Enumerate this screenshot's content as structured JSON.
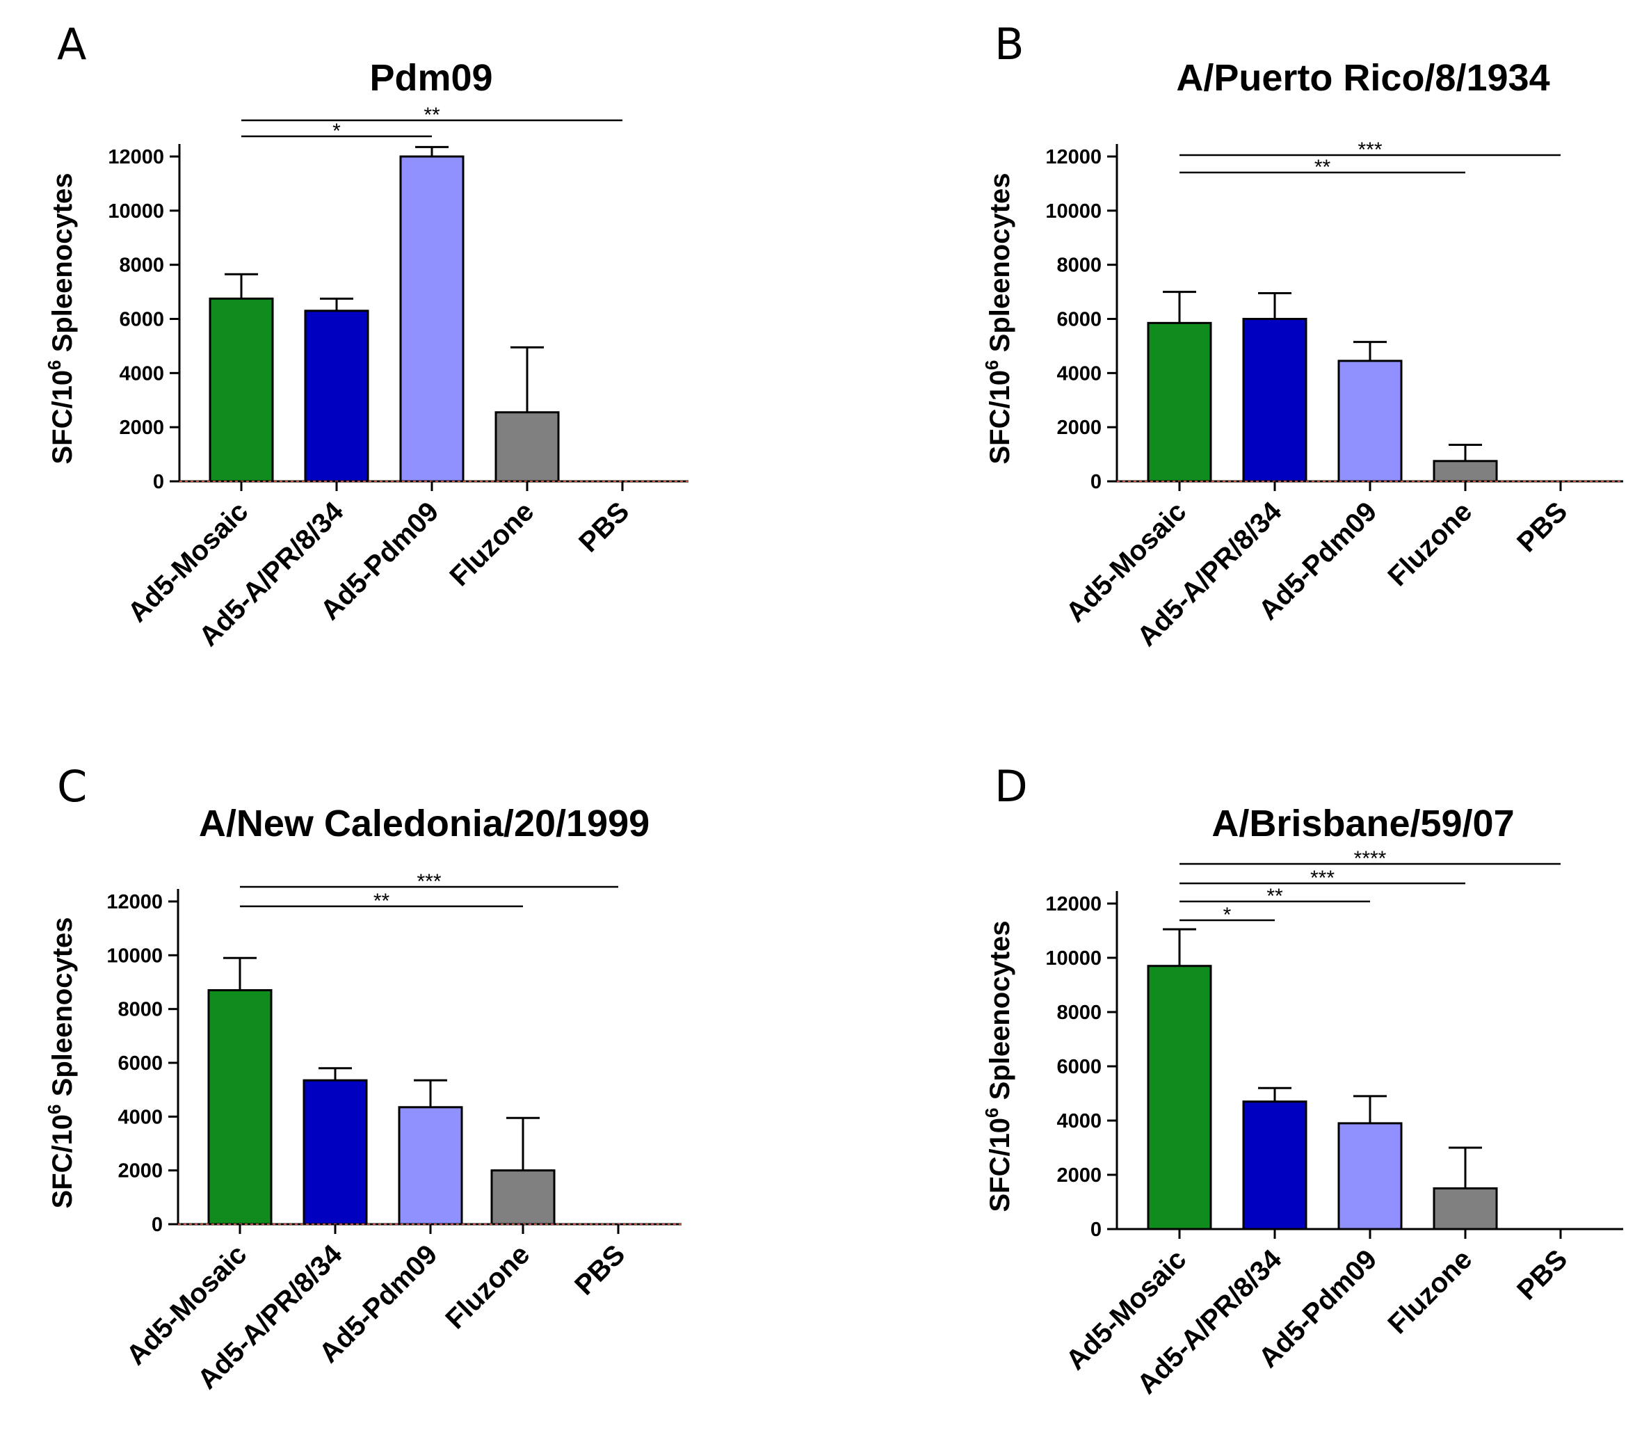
{
  "figure_type": "bar",
  "colors": {
    "Ad5-Mosaic": "#108c1e",
    "Ad5-A/PR/8/34": "#0000c0",
    "Ad5-Pdm09": "#9090ff",
    "Fluzone": "#808080",
    "PBS": "#ffffff",
    "axis": "#000000",
    "baseline_dotted": "#c05040"
  },
  "chart_data": [
    {
      "panel": "A",
      "type": "bar",
      "title": "Pdm09",
      "ylabel": {
        "main": "SFC/10",
        "sup": "6",
        "rest": " Spleenocytes"
      },
      "xlabel": "",
      "ylim": [
        0,
        12000
      ],
      "yticks": [
        "0",
        "2000",
        "4000",
        "6000",
        "8000",
        "10000",
        "12000"
      ],
      "categories": [
        "Ad5-Mosaic",
        "Ad5-A/PR/8/34",
        "Ad5-Pdm09",
        "Fluzone",
        "PBS"
      ],
      "values": [
        6750,
        6300,
        12000,
        2550,
        0
      ],
      "errors": [
        900,
        450,
        350,
        2400,
        0
      ],
      "significance": [
        {
          "from": "Ad5-Mosaic",
          "to": "Ad5-Pdm09",
          "label": "*"
        },
        {
          "from": "Ad5-Mosaic",
          "to": "PBS",
          "label": "**"
        }
      ]
    },
    {
      "panel": "B",
      "type": "bar",
      "title": "A/Puerto Rico/8/1934",
      "ylabel": {
        "main": "SFC/10",
        "sup": "6",
        "rest": " Spleenocytes"
      },
      "xlabel": "",
      "ylim": [
        0,
        12000
      ],
      "yticks": [
        "0",
        "2000",
        "4000",
        "6000",
        "8000",
        "10000",
        "12000"
      ],
      "categories": [
        "Ad5-Mosaic",
        "Ad5-A/PR/8/34",
        "Ad5-Pdm09",
        "Fluzone",
        "PBS"
      ],
      "values": [
        5850,
        6000,
        4450,
        750,
        0
      ],
      "errors": [
        1150,
        950,
        700,
        600,
        0
      ],
      "significance": [
        {
          "from": "Ad5-Mosaic",
          "to": "Fluzone",
          "label": "**"
        },
        {
          "from": "Ad5-Mosaic",
          "to": "PBS",
          "label": "***"
        }
      ]
    },
    {
      "panel": "C",
      "type": "bar",
      "title": "A/New Caledonia/20/1999",
      "ylabel": {
        "main": "SFC/10",
        "sup": "6",
        "rest": " Spleenocytes"
      },
      "xlabel": "",
      "ylim": [
        0,
        12000
      ],
      "yticks": [
        "0",
        "2000",
        "4000",
        "6000",
        "8000",
        "10000",
        "12000"
      ],
      "categories": [
        "Ad5-Mosaic",
        "Ad5-A/PR/8/34",
        "Ad5-Pdm09",
        "Fluzone",
        "PBS"
      ],
      "values": [
        8700,
        5350,
        4350,
        2000,
        0
      ],
      "errors": [
        1200,
        450,
        1000,
        1950,
        0
      ],
      "significance": [
        {
          "from": "Ad5-Mosaic",
          "to": "Fluzone",
          "label": "**"
        },
        {
          "from": "Ad5-Mosaic",
          "to": "PBS",
          "label": "***"
        }
      ]
    },
    {
      "panel": "D",
      "type": "bar",
      "title": "A/Brisbane/59/07",
      "ylabel": {
        "main": "SFC/10",
        "sup": "6",
        "rest": " Spleenocytes"
      },
      "xlabel": "",
      "ylim": [
        0,
        12000
      ],
      "yticks": [
        "0",
        "2000",
        "4000",
        "6000",
        "8000",
        "10000",
        "12000"
      ],
      "categories": [
        "Ad5-Mosaic",
        "Ad5-A/PR/8/34",
        "Ad5-Pdm09",
        "Fluzone",
        "PBS"
      ],
      "values": [
        9700,
        4700,
        3900,
        1500,
        0
      ],
      "errors": [
        1350,
        500,
        1000,
        1500,
        0
      ],
      "significance": [
        {
          "from": "Ad5-Mosaic",
          "to": "Ad5-A/PR/8/34",
          "label": "*"
        },
        {
          "from": "Ad5-Mosaic",
          "to": "Ad5-Pdm09",
          "label": "**"
        },
        {
          "from": "Ad5-Mosaic",
          "to": "Fluzone",
          "label": "***"
        },
        {
          "from": "Ad5-Mosaic",
          "to": "PBS",
          "label": "****"
        }
      ]
    }
  ]
}
